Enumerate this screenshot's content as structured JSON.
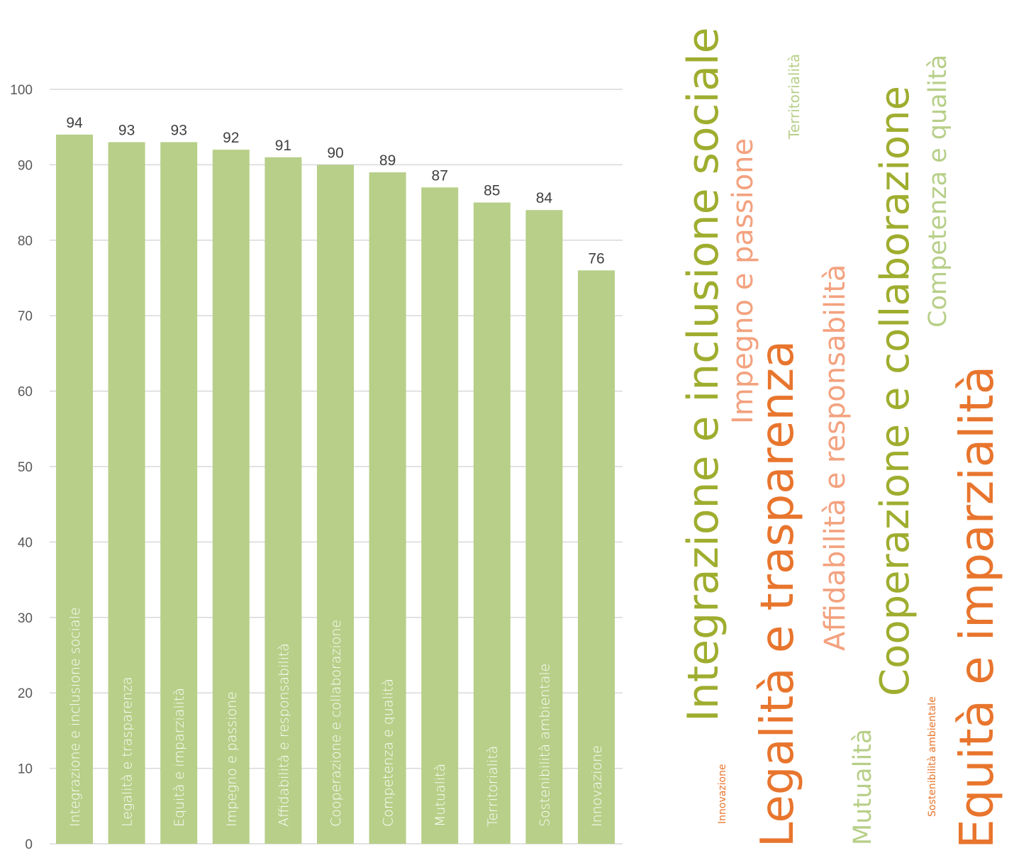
{
  "chart_data": {
    "type": "bar",
    "categories": [
      "Integrazione e inclusione sociale",
      "Legalità e trasparenza",
      "Equità e imparzialità",
      "Impegno e passione",
      "Affidabilità e responsabilità",
      "Cooperazione e collaborazione",
      "Competenza e qualità",
      "Mutualità",
      "Territorialità",
      "Sostenibilità ambientale",
      "Innovazione"
    ],
    "values": [
      94,
      93,
      93,
      92,
      91,
      90,
      89,
      87,
      85,
      84,
      76
    ],
    "ylim": [
      0,
      100
    ],
    "yticks": [
      "0",
      "10",
      "20",
      "30",
      "40",
      "50",
      "60",
      "70",
      "80",
      "90",
      "100"
    ],
    "grid": true,
    "colors": {
      "bar": "#b7cf88",
      "grid": "#d9d9d9",
      "labels_inside": "#ffffff"
    }
  },
  "word_cloud": [
    {
      "text": "Integrazione e inclusione sociale",
      "color": "#9fad2f"
    },
    {
      "text": "Impegno e passione",
      "color": "#f3a27f"
    },
    {
      "text": "Territorialità",
      "color": "#b7cf88"
    },
    {
      "text": "Legalità e trasparenza",
      "color": "#e8752d"
    },
    {
      "text": "Affidabilità e responsabilità",
      "color": "#f3a27f"
    },
    {
      "text": "Cooperazione e collaborazione",
      "color": "#9fad2f"
    },
    {
      "text": "Competenza e qualità",
      "color": "#b7cf88"
    },
    {
      "text": "Equità e imparzialità",
      "color": "#e8752d"
    },
    {
      "text": "Innovazione",
      "color": "#e8752d"
    },
    {
      "text": "Mutualità",
      "color": "#b7cf88"
    },
    {
      "text": "Sostenibilità ambientale",
      "color": "#e8752d"
    }
  ]
}
